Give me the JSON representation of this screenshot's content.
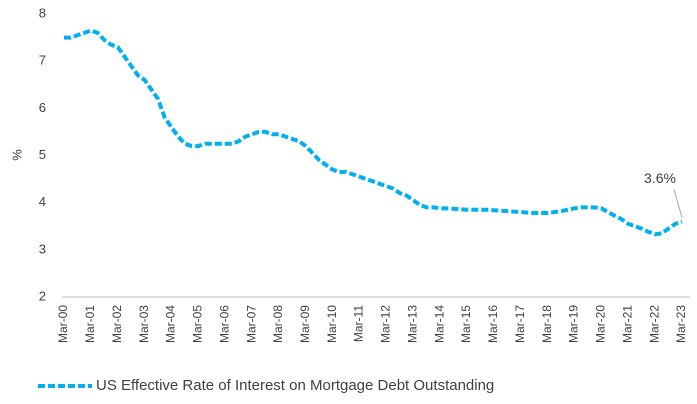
{
  "chart_data": {
    "type": "line",
    "y_label": "%",
    "categories": [
      "Mar-00",
      null,
      null,
      null,
      "Mar-01",
      null,
      null,
      null,
      "Mar-02",
      null,
      null,
      null,
      "Mar-03",
      null,
      null,
      null,
      "Mar-04",
      null,
      null,
      null,
      "Mar-05",
      null,
      null,
      null,
      "Mar-06",
      null,
      null,
      null,
      "Mar-07",
      null,
      null,
      null,
      "Mar-08",
      null,
      null,
      null,
      "Mar-09",
      null,
      null,
      null,
      "Mar-10",
      null,
      null,
      null,
      "Mar-11",
      null,
      null,
      null,
      "Mar-12",
      null,
      null,
      null,
      "Mar-13",
      null,
      null,
      null,
      "Mar-14",
      null,
      null,
      null,
      "Mar-15",
      null,
      null,
      null,
      "Mar-16",
      null,
      null,
      null,
      "Mar-17",
      null,
      null,
      null,
      "Mar-18",
      null,
      null,
      null,
      "Mar-19",
      null,
      null,
      null,
      "Mar-20",
      null,
      null,
      null,
      "Mar-21",
      null,
      null,
      null,
      "Mar-22",
      null,
      null,
      null,
      "Mar-23"
    ],
    "series": [
      {
        "name": "US Effective Rate of Interest on Mortgage Debt Outstanding",
        "color": "#00b0f0",
        "values": [
          7.5,
          7.5,
          7.55,
          7.6,
          7.65,
          7.6,
          7.45,
          7.35,
          7.3,
          7.1,
          6.9,
          6.7,
          6.6,
          6.4,
          6.2,
          5.8,
          5.6,
          5.4,
          5.25,
          5.2,
          5.2,
          5.25,
          5.25,
          5.25,
          5.25,
          5.25,
          5.3,
          5.4,
          5.45,
          5.5,
          5.5,
          5.45,
          5.45,
          5.4,
          5.35,
          5.3,
          5.2,
          5.05,
          4.9,
          4.8,
          4.7,
          4.65,
          4.65,
          4.6,
          4.55,
          4.5,
          4.45,
          4.4,
          4.35,
          4.3,
          4.2,
          4.15,
          4.05,
          3.95,
          3.9,
          3.9,
          3.88,
          3.88,
          3.87,
          3.86,
          3.85,
          3.85,
          3.85,
          3.85,
          3.84,
          3.83,
          3.82,
          3.81,
          3.8,
          3.79,
          3.78,
          3.78,
          3.78,
          3.8,
          3.82,
          3.85,
          3.88,
          3.9,
          3.9,
          3.9,
          3.88,
          3.8,
          3.72,
          3.65,
          3.55,
          3.5,
          3.45,
          3.38,
          3.33,
          3.35,
          3.45,
          3.55,
          3.6
        ],
        "value_labels": [
          null,
          null,
          null,
          null,
          null,
          null,
          null,
          null,
          null,
          null,
          null,
          null,
          null,
          null,
          null,
          null,
          null,
          null,
          null,
          null,
          null,
          null,
          null,
          null,
          null,
          null,
          null,
          null,
          null,
          null,
          null,
          null,
          null,
          null,
          null,
          null,
          null,
          null,
          null,
          null,
          null,
          null,
          null,
          null,
          null,
          null,
          null,
          null,
          null,
          null,
          null,
          null,
          null,
          null,
          null,
          null,
          null,
          null,
          null,
          null,
          null,
          null,
          null,
          null,
          null,
          null,
          null,
          null,
          null,
          null,
          null,
          null,
          null,
          null,
          null,
          null,
          null,
          null,
          null,
          null,
          null,
          null,
          null,
          null,
          null,
          null,
          null,
          null,
          null,
          null,
          null,
          null,
          "3.6%"
        ]
      }
    ],
    "ylim": [
      2,
      8
    ],
    "yticks": [
      2,
      3,
      4,
      5,
      6,
      7,
      8
    ],
    "grid": false,
    "legend": "bottom"
  }
}
